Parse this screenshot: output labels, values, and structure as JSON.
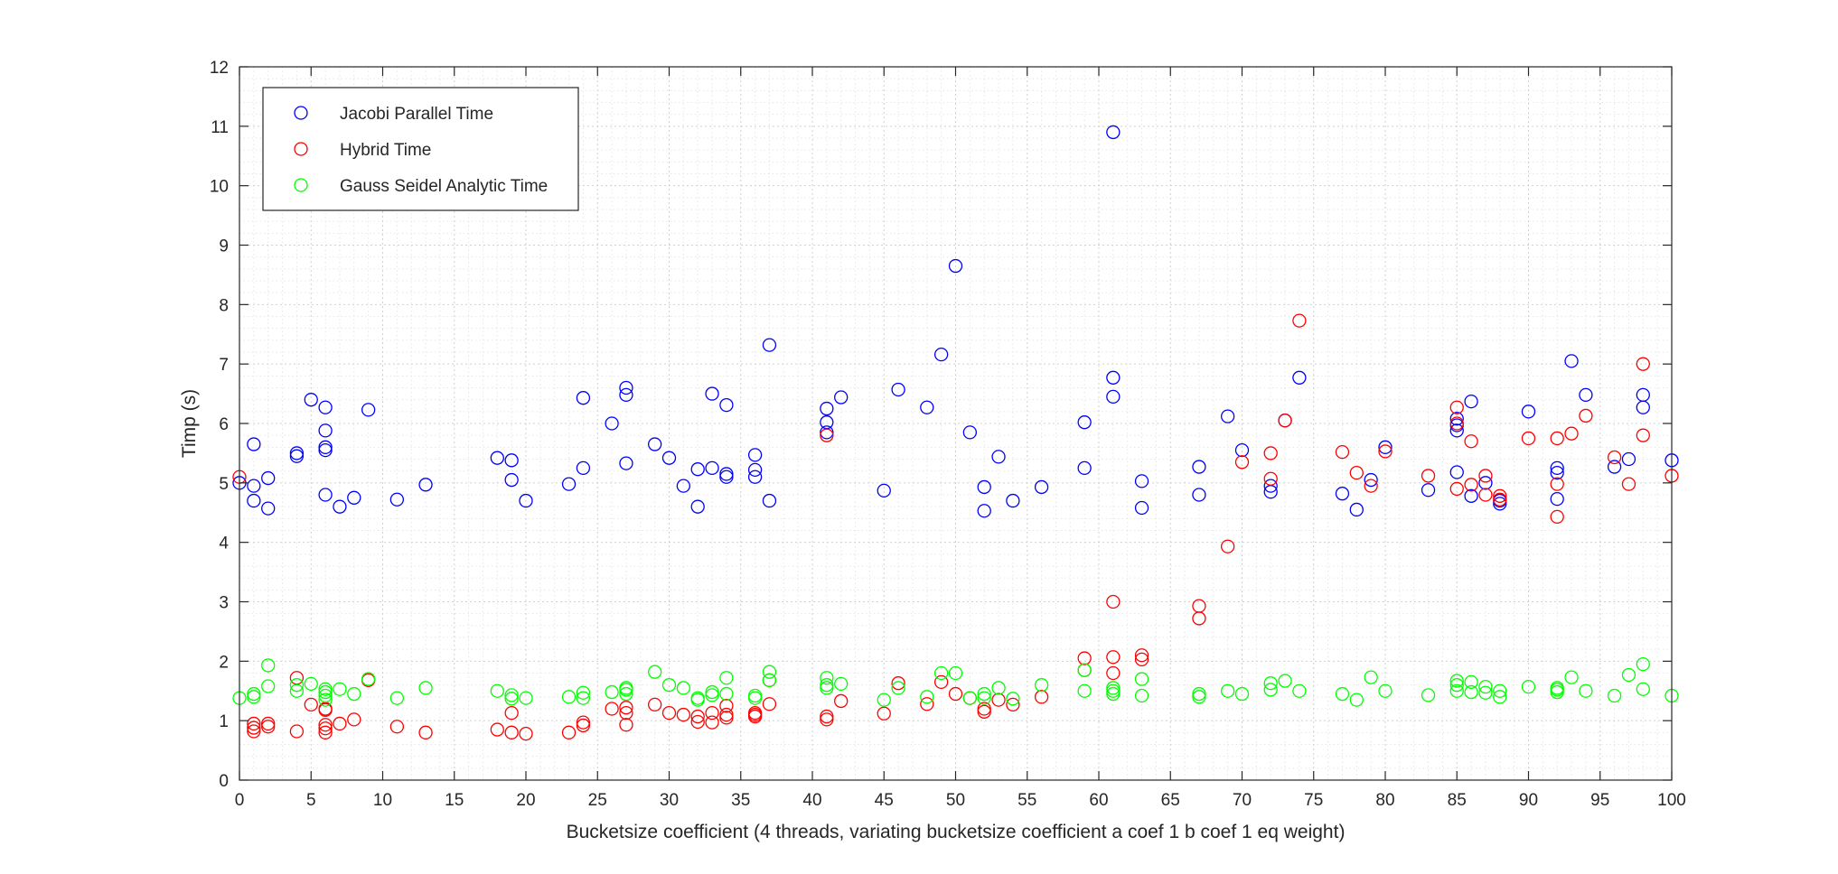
{
  "chart_data": {
    "type": "scatter",
    "title": "",
    "xlabel": "Bucketsize coefficient (4 threads, variating bucketsize coefficient a coef 1 b coef 1 eq weight)",
    "ylabel": "Timp (s)",
    "xlim": [
      0,
      100
    ],
    "ylim": [
      0,
      12
    ],
    "x_ticks": [
      "0",
      "5",
      "10",
      "15",
      "20",
      "25",
      "30",
      "35",
      "40",
      "45",
      "50",
      "55",
      "60",
      "65",
      "70",
      "75",
      "80",
      "85",
      "90",
      "95",
      "100"
    ],
    "y_ticks": [
      "0",
      "1",
      "2",
      "3",
      "4",
      "5",
      "6",
      "7",
      "8",
      "9",
      "10",
      "11",
      "12"
    ],
    "grid": true,
    "minor_grid": true,
    "legend_position": "top-left",
    "marker": "circle-open",
    "series": [
      {
        "name": "Jacobi Parallel Time",
        "color": "#0000ff",
        "points": [
          [
            0,
            5.0
          ],
          [
            1,
            4.7
          ],
          [
            1,
            4.95
          ],
          [
            1,
            5.65
          ],
          [
            2,
            4.57
          ],
          [
            2,
            5.08
          ],
          [
            4,
            5.45
          ],
          [
            4,
            5.5
          ],
          [
            5,
            6.4
          ],
          [
            6,
            4.8
          ],
          [
            6,
            5.55
          ],
          [
            6,
            5.6
          ],
          [
            6,
            5.88
          ],
          [
            6,
            6.27
          ],
          [
            7,
            4.6
          ],
          [
            8,
            4.75
          ],
          [
            9,
            6.23
          ],
          [
            11,
            4.72
          ],
          [
            13,
            4.97
          ],
          [
            18,
            5.42
          ],
          [
            19,
            5.05
          ],
          [
            19,
            5.38
          ],
          [
            20,
            4.7
          ],
          [
            23,
            4.98
          ],
          [
            24,
            5.25
          ],
          [
            24,
            6.43
          ],
          [
            26,
            6.0
          ],
          [
            27,
            5.33
          ],
          [
            27,
            6.48
          ],
          [
            27,
            6.6
          ],
          [
            29,
            5.65
          ],
          [
            30,
            5.42
          ],
          [
            31,
            4.95
          ],
          [
            32,
            4.6
          ],
          [
            32,
            5.23
          ],
          [
            33,
            5.25
          ],
          [
            33,
            6.5
          ],
          [
            34,
            5.1
          ],
          [
            34,
            5.15
          ],
          [
            34,
            6.31
          ],
          [
            36,
            5.1
          ],
          [
            36,
            5.22
          ],
          [
            36,
            5.47
          ],
          [
            37,
            4.7
          ],
          [
            37,
            7.32
          ],
          [
            41,
            5.85
          ],
          [
            41,
            6.02
          ],
          [
            41,
            6.25
          ],
          [
            42,
            6.44
          ],
          [
            45,
            4.87
          ],
          [
            46,
            6.57
          ],
          [
            48,
            6.27
          ],
          [
            49,
            7.16
          ],
          [
            50,
            8.65
          ],
          [
            51,
            5.85
          ],
          [
            52,
            4.53
          ],
          [
            52,
            4.93
          ],
          [
            53,
            5.44
          ],
          [
            54,
            4.7
          ],
          [
            56,
            4.93
          ],
          [
            59,
            5.25
          ],
          [
            59,
            6.02
          ],
          [
            61,
            6.45
          ],
          [
            61,
            6.77
          ],
          [
            61,
            10.9
          ],
          [
            63,
            4.58
          ],
          [
            63,
            5.03
          ],
          [
            67,
            4.8
          ],
          [
            67,
            5.27
          ],
          [
            69,
            6.12
          ],
          [
            70,
            5.55
          ],
          [
            72,
            4.85
          ],
          [
            72,
            4.95
          ],
          [
            73,
            6.05
          ],
          [
            74,
            6.77
          ],
          [
            77,
            4.82
          ],
          [
            78,
            4.55
          ],
          [
            79,
            5.05
          ],
          [
            80,
            5.6
          ],
          [
            83,
            4.88
          ],
          [
            85,
            5.18
          ],
          [
            85,
            5.88
          ],
          [
            85,
            5.97
          ],
          [
            85,
            6.08
          ],
          [
            86,
            4.78
          ],
          [
            86,
            6.37
          ],
          [
            87,
            5.0
          ],
          [
            88,
            4.65
          ],
          [
            88,
            4.7
          ],
          [
            90,
            6.2
          ],
          [
            92,
            4.73
          ],
          [
            92,
            5.17
          ],
          [
            92,
            5.25
          ],
          [
            93,
            7.05
          ],
          [
            94,
            6.48
          ],
          [
            96,
            5.27
          ],
          [
            97,
            5.4
          ],
          [
            98,
            6.27
          ],
          [
            98,
            6.48
          ],
          [
            100,
            5.38
          ]
        ]
      },
      {
        "name": "Hybrid Time",
        "color": "#ff0000",
        "points": [
          [
            0,
            5.1
          ],
          [
            1,
            0.82
          ],
          [
            1,
            0.88
          ],
          [
            1,
            0.95
          ],
          [
            2,
            0.9
          ],
          [
            2,
            0.95
          ],
          [
            4,
            0.82
          ],
          [
            4,
            1.72
          ],
          [
            5,
            1.27
          ],
          [
            6,
            0.8
          ],
          [
            6,
            0.87
          ],
          [
            6,
            0.93
          ],
          [
            6,
            1.18
          ],
          [
            6,
            1.2
          ],
          [
            7,
            0.95
          ],
          [
            8,
            1.02
          ],
          [
            9,
            1.68
          ],
          [
            11,
            0.9
          ],
          [
            13,
            0.8
          ],
          [
            18,
            0.85
          ],
          [
            19,
            0.8
          ],
          [
            19,
            1.13
          ],
          [
            20,
            0.78
          ],
          [
            23,
            0.8
          ],
          [
            24,
            0.92
          ],
          [
            24,
            0.97
          ],
          [
            26,
            1.2
          ],
          [
            27,
            0.93
          ],
          [
            27,
            1.13
          ],
          [
            27,
            1.22
          ],
          [
            29,
            1.27
          ],
          [
            30,
            1.13
          ],
          [
            31,
            1.1
          ],
          [
            32,
            0.98
          ],
          [
            32,
            1.07
          ],
          [
            33,
            0.97
          ],
          [
            33,
            1.13
          ],
          [
            34,
            1.05
          ],
          [
            34,
            1.1
          ],
          [
            34,
            1.25
          ],
          [
            36,
            1.07
          ],
          [
            36,
            1.1
          ],
          [
            36,
            1.13
          ],
          [
            37,
            1.28
          ],
          [
            37,
            1.68
          ],
          [
            41,
            1.02
          ],
          [
            41,
            1.07
          ],
          [
            41,
            5.8
          ],
          [
            42,
            1.33
          ],
          [
            45,
            1.12
          ],
          [
            46,
            1.63
          ],
          [
            48,
            1.28
          ],
          [
            49,
            1.65
          ],
          [
            50,
            1.45
          ],
          [
            51,
            1.38
          ],
          [
            52,
            1.15
          ],
          [
            52,
            1.2
          ],
          [
            53,
            1.35
          ],
          [
            54,
            1.27
          ],
          [
            56,
            1.4
          ],
          [
            59,
            1.85
          ],
          [
            59,
            2.05
          ],
          [
            61,
            1.8
          ],
          [
            61,
            2.07
          ],
          [
            61,
            3.0
          ],
          [
            63,
            2.03
          ],
          [
            63,
            2.1
          ],
          [
            67,
            2.72
          ],
          [
            67,
            2.93
          ],
          [
            69,
            3.93
          ],
          [
            70,
            5.35
          ],
          [
            72,
            5.07
          ],
          [
            72,
            5.5
          ],
          [
            73,
            6.05
          ],
          [
            74,
            7.73
          ],
          [
            77,
            5.52
          ],
          [
            78,
            5.17
          ],
          [
            79,
            4.95
          ],
          [
            80,
            5.53
          ],
          [
            83,
            5.12
          ],
          [
            85,
            4.9
          ],
          [
            85,
            6.0
          ],
          [
            85,
            6.27
          ],
          [
            86,
            4.97
          ],
          [
            86,
            5.7
          ],
          [
            87,
            4.8
          ],
          [
            87,
            5.12
          ],
          [
            88,
            4.72
          ],
          [
            88,
            4.78
          ],
          [
            90,
            5.75
          ],
          [
            92,
            4.43
          ],
          [
            92,
            4.98
          ],
          [
            92,
            5.75
          ],
          [
            93,
            5.83
          ],
          [
            94,
            6.13
          ],
          [
            96,
            5.43
          ],
          [
            97,
            4.98
          ],
          [
            98,
            5.8
          ],
          [
            98,
            7.0
          ],
          [
            100,
            5.12
          ]
        ]
      },
      {
        "name": "Gauss Seidel Analytic Time",
        "color": "#00ff00",
        "points": [
          [
            0,
            1.38
          ],
          [
            1,
            1.4
          ],
          [
            1,
            1.45
          ],
          [
            2,
            1.58
          ],
          [
            2,
            1.93
          ],
          [
            4,
            1.5
          ],
          [
            4,
            1.6
          ],
          [
            5,
            1.62
          ],
          [
            6,
            1.35
          ],
          [
            6,
            1.42
          ],
          [
            6,
            1.48
          ],
          [
            6,
            1.53
          ],
          [
            7,
            1.53
          ],
          [
            8,
            1.45
          ],
          [
            9,
            1.7
          ],
          [
            11,
            1.38
          ],
          [
            13,
            1.55
          ],
          [
            18,
            1.5
          ],
          [
            19,
            1.37
          ],
          [
            19,
            1.43
          ],
          [
            20,
            1.38
          ],
          [
            23,
            1.4
          ],
          [
            24,
            1.38
          ],
          [
            24,
            1.47
          ],
          [
            26,
            1.48
          ],
          [
            27,
            1.45
          ],
          [
            27,
            1.52
          ],
          [
            27,
            1.55
          ],
          [
            29,
            1.82
          ],
          [
            30,
            1.6
          ],
          [
            31,
            1.55
          ],
          [
            32,
            1.35
          ],
          [
            32,
            1.38
          ],
          [
            33,
            1.43
          ],
          [
            33,
            1.48
          ],
          [
            34,
            1.45
          ],
          [
            34,
            1.72
          ],
          [
            36,
            1.38
          ],
          [
            36,
            1.42
          ],
          [
            37,
            1.68
          ],
          [
            37,
            1.82
          ],
          [
            41,
            1.55
          ],
          [
            41,
            1.6
          ],
          [
            41,
            1.72
          ],
          [
            42,
            1.62
          ],
          [
            45,
            1.35
          ],
          [
            46,
            1.55
          ],
          [
            48,
            1.4
          ],
          [
            49,
            1.8
          ],
          [
            50,
            1.8
          ],
          [
            51,
            1.38
          ],
          [
            52,
            1.38
          ],
          [
            52,
            1.45
          ],
          [
            53,
            1.55
          ],
          [
            54,
            1.37
          ],
          [
            56,
            1.6
          ],
          [
            59,
            1.5
          ],
          [
            59,
            1.85
          ],
          [
            61,
            1.45
          ],
          [
            61,
            1.5
          ],
          [
            61,
            1.55
          ],
          [
            63,
            1.42
          ],
          [
            63,
            1.7
          ],
          [
            67,
            1.4
          ],
          [
            67,
            1.45
          ],
          [
            69,
            1.5
          ],
          [
            70,
            1.45
          ],
          [
            72,
            1.52
          ],
          [
            72,
            1.63
          ],
          [
            73,
            1.67
          ],
          [
            74,
            1.5
          ],
          [
            77,
            1.45
          ],
          [
            78,
            1.35
          ],
          [
            79,
            1.73
          ],
          [
            80,
            1.5
          ],
          [
            83,
            1.43
          ],
          [
            85,
            1.5
          ],
          [
            85,
            1.6
          ],
          [
            85,
            1.67
          ],
          [
            86,
            1.48
          ],
          [
            86,
            1.65
          ],
          [
            87,
            1.47
          ],
          [
            87,
            1.57
          ],
          [
            88,
            1.4
          ],
          [
            88,
            1.5
          ],
          [
            90,
            1.57
          ],
          [
            92,
            1.48
          ],
          [
            92,
            1.52
          ],
          [
            92,
            1.55
          ],
          [
            93,
            1.73
          ],
          [
            94,
            1.5
          ],
          [
            96,
            1.42
          ],
          [
            97,
            1.77
          ],
          [
            98,
            1.53
          ],
          [
            98,
            1.95
          ],
          [
            100,
            1.42
          ]
        ]
      }
    ]
  }
}
